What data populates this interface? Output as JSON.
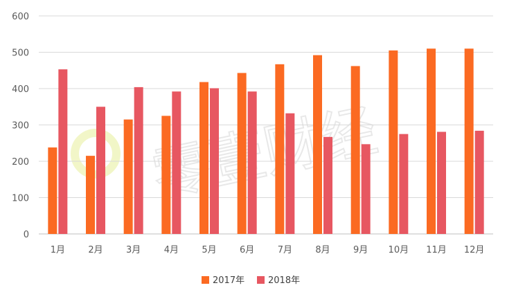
{
  "chart_data": {
    "type": "bar",
    "categories": [
      "1月",
      "2月",
      "3月",
      "4月",
      "5月",
      "6月",
      "7月",
      "8月",
      "9月",
      "10月",
      "11月",
      "12月"
    ],
    "series": [
      {
        "name": "2017年",
        "color": "#fb6a22",
        "values": [
          238,
          215,
          315,
          325,
          418,
          443,
          467,
          492,
          462,
          505,
          510,
          510
        ]
      },
      {
        "name": "2018年",
        "color": "#e75761",
        "values": [
          453,
          350,
          404,
          392,
          401,
          392,
          332,
          267,
          247,
          275,
          281,
          284
        ]
      }
    ],
    "ylim": [
      0,
      600
    ],
    "yticks": [
      0,
      100,
      200,
      300,
      400,
      500,
      600
    ],
    "grid": true,
    "legend_position": "bottom"
  },
  "watermark": {
    "text": "零壹财经"
  }
}
